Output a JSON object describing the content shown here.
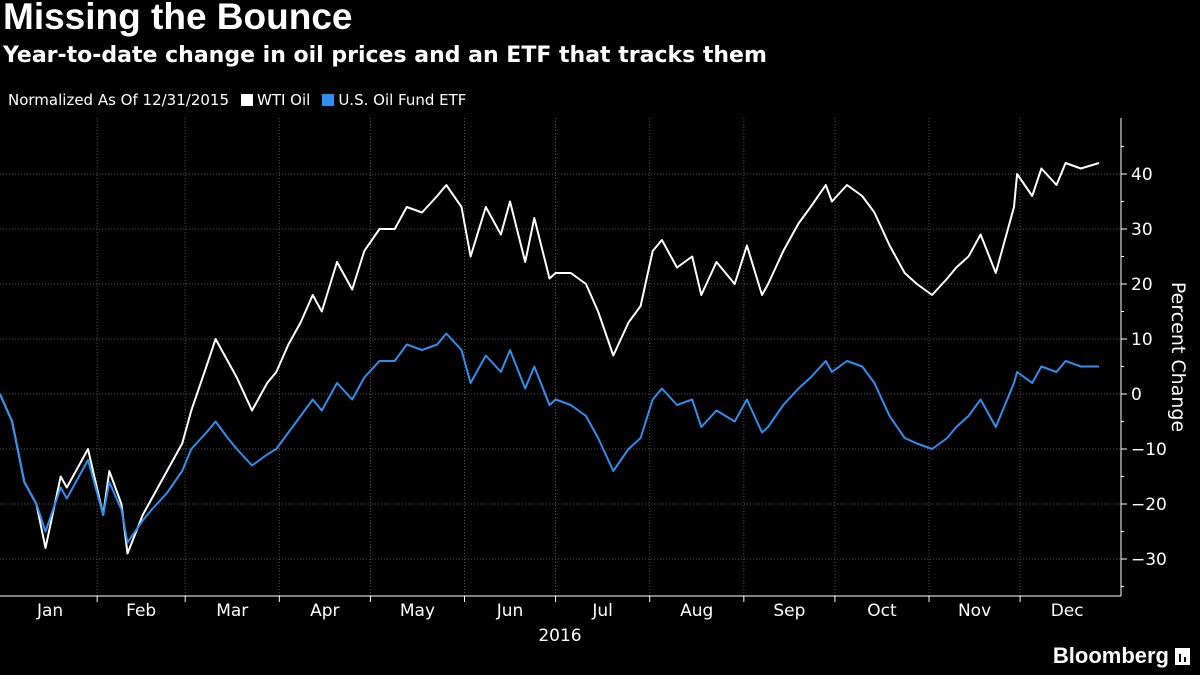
{
  "title": "Missing the Bounce",
  "subtitle": "Year-to-date change in oil prices and an ETF that tracks them",
  "legend": {
    "note": "Normalized As Of 12/31/2015",
    "items": [
      {
        "label": "WTI Oil",
        "color": "#ffffff"
      },
      {
        "label": "U.S. Oil Fund ETF",
        "color": "#2f8ef0"
      }
    ]
  },
  "brand": "Bloomberg",
  "chart_data": {
    "type": "line",
    "title": "Missing the Bounce",
    "subtitle": "Year-to-date change in oil prices and an ETF that tracks them",
    "xlabel": "2016",
    "ylabel": "Percent Change",
    "ylim": [
      -37,
      50
    ],
    "yticks": [
      -30,
      -20,
      -10,
      0,
      10,
      20,
      30,
      40
    ],
    "xlim": [
      "2015-12-31",
      "2016-12-31"
    ],
    "months": [
      "Jan",
      "Feb",
      "Mar",
      "Apr",
      "May",
      "Jun",
      "Jul",
      "Aug",
      "Sep",
      "Oct",
      "Nov",
      "Dec"
    ],
    "year_label": "2016",
    "grid": true,
    "legend_position": "top-left",
    "series": [
      {
        "name": "WTI Oil",
        "color": "#ffffff",
        "x": [
          "2015-12-31",
          "2016-01-04",
          "2016-01-08",
          "2016-01-12",
          "2016-01-15",
          "2016-01-20",
          "2016-01-22",
          "2016-01-27",
          "2016-01-29",
          "2016-02-03",
          "2016-02-05",
          "2016-02-09",
          "2016-02-11",
          "2016-02-16",
          "2016-02-19",
          "2016-02-24",
          "2016-02-29",
          "2016-03-03",
          "2016-03-08",
          "2016-03-11",
          "2016-03-15",
          "2016-03-18",
          "2016-03-23",
          "2016-03-28",
          "2016-03-31",
          "2016-04-04",
          "2016-04-08",
          "2016-04-12",
          "2016-04-15",
          "2016-04-20",
          "2016-04-25",
          "2016-04-29",
          "2016-05-04",
          "2016-05-09",
          "2016-05-13",
          "2016-05-18",
          "2016-05-23",
          "2016-05-26",
          "2016-05-31",
          "2016-06-03",
          "2016-06-08",
          "2016-06-13",
          "2016-06-16",
          "2016-06-21",
          "2016-06-24",
          "2016-06-29",
          "2016-07-01",
          "2016-07-06",
          "2016-07-11",
          "2016-07-15",
          "2016-07-20",
          "2016-07-25",
          "2016-07-29",
          "2016-08-02",
          "2016-08-05",
          "2016-08-10",
          "2016-08-15",
          "2016-08-18",
          "2016-08-23",
          "2016-08-29",
          "2016-09-02",
          "2016-09-07",
          "2016-09-09",
          "2016-09-14",
          "2016-09-19",
          "2016-09-23",
          "2016-09-28",
          "2016-09-30",
          "2016-10-05",
          "2016-10-10",
          "2016-10-14",
          "2016-10-19",
          "2016-10-24",
          "2016-10-28",
          "2016-11-02",
          "2016-11-07",
          "2016-11-10",
          "2016-11-14",
          "2016-11-18",
          "2016-11-23",
          "2016-11-29",
          "2016-11-30",
          "2016-12-05",
          "2016-12-08",
          "2016-12-13",
          "2016-12-16",
          "2016-12-21",
          "2016-12-27"
        ],
        "values": [
          0,
          -5,
          -16,
          -20,
          -28,
          -15,
          -17,
          -12,
          -10,
          -22,
          -14,
          -20,
          -29,
          -22,
          -19,
          -14,
          -9,
          -3,
          5,
          10,
          6,
          3,
          -3,
          2,
          4,
          9,
          13,
          18,
          15,
          24,
          19,
          26,
          30,
          30,
          34,
          33,
          36,
          38,
          34,
          25,
          34,
          29,
          35,
          24,
          32,
          21,
          22,
          22,
          20,
          15,
          7,
          13,
          16,
          26,
          28,
          23,
          25,
          18,
          24,
          20,
          27,
          18,
          20,
          26,
          31,
          34,
          38,
          35,
          38,
          36,
          33,
          27,
          22,
          20,
          18,
          21,
          23,
          25,
          29,
          22,
          34,
          40,
          36,
          41,
          38,
          42,
          41,
          42
        ]
      },
      {
        "name": "U.S. Oil Fund ETF",
        "color": "#2f8ef0",
        "x": [
          "2015-12-31",
          "2016-01-04",
          "2016-01-08",
          "2016-01-12",
          "2016-01-15",
          "2016-01-20",
          "2016-01-22",
          "2016-01-27",
          "2016-01-29",
          "2016-02-03",
          "2016-02-05",
          "2016-02-09",
          "2016-02-11",
          "2016-02-16",
          "2016-02-19",
          "2016-02-24",
          "2016-02-29",
          "2016-03-03",
          "2016-03-08",
          "2016-03-11",
          "2016-03-15",
          "2016-03-18",
          "2016-03-23",
          "2016-03-28",
          "2016-03-31",
          "2016-04-04",
          "2016-04-08",
          "2016-04-12",
          "2016-04-15",
          "2016-04-20",
          "2016-04-25",
          "2016-04-29",
          "2016-05-04",
          "2016-05-09",
          "2016-05-13",
          "2016-05-18",
          "2016-05-23",
          "2016-05-26",
          "2016-05-31",
          "2016-06-03",
          "2016-06-08",
          "2016-06-13",
          "2016-06-16",
          "2016-06-21",
          "2016-06-24",
          "2016-06-29",
          "2016-07-01",
          "2016-07-06",
          "2016-07-11",
          "2016-07-15",
          "2016-07-20",
          "2016-07-25",
          "2016-07-29",
          "2016-08-02",
          "2016-08-05",
          "2016-08-10",
          "2016-08-15",
          "2016-08-18",
          "2016-08-23",
          "2016-08-29",
          "2016-09-02",
          "2016-09-07",
          "2016-09-09",
          "2016-09-14",
          "2016-09-19",
          "2016-09-23",
          "2016-09-28",
          "2016-09-30",
          "2016-10-05",
          "2016-10-10",
          "2016-10-14",
          "2016-10-19",
          "2016-10-24",
          "2016-10-28",
          "2016-11-02",
          "2016-11-07",
          "2016-11-10",
          "2016-11-14",
          "2016-11-18",
          "2016-11-23",
          "2016-11-29",
          "2016-11-30",
          "2016-12-05",
          "2016-12-08",
          "2016-12-13",
          "2016-12-16",
          "2016-12-21",
          "2016-12-27"
        ],
        "values": [
          0,
          -5,
          -16,
          -20,
          -25,
          -17,
          -19,
          -14,
          -12,
          -22,
          -16,
          -21,
          -27,
          -23,
          -21,
          -18,
          -14,
          -10,
          -7,
          -5,
          -8,
          -10,
          -13,
          -11,
          -10,
          -7,
          -4,
          -1,
          -3,
          2,
          -1,
          3,
          6,
          6,
          9,
          8,
          9,
          11,
          8,
          2,
          7,
          4,
          8,
          1,
          5,
          -2,
          -1,
          -2,
          -4,
          -8,
          -14,
          -10,
          -8,
          -1,
          1,
          -2,
          -1,
          -6,
          -3,
          -5,
          -1,
          -7,
          -6,
          -2,
          1,
          3,
          6,
          4,
          6,
          5,
          2,
          -4,
          -8,
          -9,
          -10,
          -8,
          -6,
          -4,
          -1,
          -6,
          2,
          4,
          2,
          5,
          4,
          6,
          5,
          5
        ]
      }
    ]
  }
}
